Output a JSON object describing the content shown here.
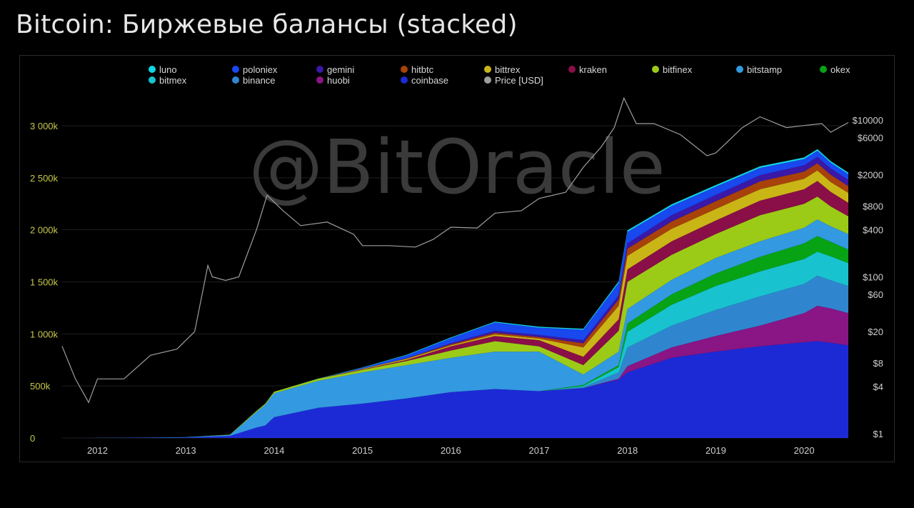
{
  "page": {
    "title": "Bitcoin: Биржевые балансы (stacked)"
  },
  "watermark": "@BitOracle",
  "chart_data": {
    "type": "area",
    "title": "Bitcoin: Биржевые балансы (stacked)",
    "legend_position": "top",
    "grid": true,
    "x_tick_labels": [
      "2012",
      "2013",
      "2014",
      "2015",
      "2016",
      "2017",
      "2018",
      "2019",
      "2020"
    ],
    "x_range": [
      2011.6,
      2020.5
    ],
    "y_left": {
      "range": [
        0,
        3000000
      ],
      "ticks": [
        0,
        500000,
        1000000,
        1500000,
        2000000,
        2500000,
        3000000
      ],
      "tick_labels": [
        "0",
        "500k",
        "1 000k",
        "1 500k",
        "2 000k",
        "2 500k",
        "3 000k"
      ]
    },
    "y_right": {
      "scale": "log",
      "tick_values": [
        1,
        4,
        8,
        20,
        60,
        100,
        400,
        800,
        2000,
        6000,
        10000
      ],
      "tick_labels": [
        "$1",
        "$4",
        "$8",
        "$20",
        "$60",
        "$100",
        "$400",
        "$800",
        "$2000",
        "$6000",
        "$10000"
      ]
    },
    "x": [
      2011.6,
      2012.0,
      2012.5,
      2013.0,
      2013.5,
      2013.8,
      2013.9,
      2014.0,
      2014.5,
      2015.0,
      2015.5,
      2016.0,
      2016.5,
      2017.0,
      2017.5,
      2017.9,
      2018.0,
      2018.5,
      2019.0,
      2019.5,
      2020.0,
      2020.15,
      2020.3,
      2020.5
    ],
    "series": [
      {
        "name": "coinbase",
        "color": "#1c2ad6",
        "values": [
          0,
          1000,
          3000,
          5000,
          20000,
          100000,
          120000,
          200000,
          290000,
          330000,
          380000,
          440000,
          470000,
          450000,
          480000,
          560000,
          630000,
          770000,
          830000,
          880000,
          920000,
          930000,
          915000,
          890000
        ]
      },
      {
        "name": "huobi",
        "color": "#8a1585",
        "values": [
          0,
          0,
          0,
          0,
          0,
          0,
          0,
          0,
          0,
          0,
          0,
          0,
          0,
          0,
          0,
          10000,
          60000,
          100000,
          150000,
          200000,
          280000,
          340000,
          330000,
          310000
        ]
      },
      {
        "name": "binance",
        "color": "#2f86cf",
        "values": [
          0,
          0,
          0,
          0,
          0,
          0,
          0,
          0,
          0,
          0,
          0,
          0,
          0,
          0,
          10000,
          60000,
          180000,
          210000,
          250000,
          280000,
          280000,
          290000,
          270000,
          260000
        ]
      },
      {
        "name": "bitmex",
        "color": "#18c3cf",
        "values": [
          0,
          0,
          0,
          0,
          0,
          0,
          0,
          0,
          0,
          0,
          0,
          0,
          0,
          0,
          10000,
          50000,
          150000,
          200000,
          230000,
          240000,
          240000,
          230000,
          230000,
          220000
        ]
      },
      {
        "name": "okex",
        "color": "#07a315",
        "values": [
          0,
          0,
          0,
          0,
          0,
          0,
          0,
          0,
          0,
          0,
          0,
          0,
          0,
          0,
          10000,
          20000,
          80000,
          100000,
          120000,
          140000,
          150000,
          150000,
          140000,
          130000
        ]
      },
      {
        "name": "bitstamp",
        "color": "#3399e0",
        "values": [
          0,
          500,
          1000,
          3000,
          10000,
          150000,
          200000,
          230000,
          260000,
          300000,
          320000,
          330000,
          360000,
          380000,
          100000,
          130000,
          140000,
          140000,
          150000,
          150000,
          150000,
          160000,
          150000,
          150000
        ]
      },
      {
        "name": "bitfinex",
        "color": "#9ccb17",
        "values": [
          0,
          0,
          0,
          0,
          3000,
          10000,
          10000,
          15000,
          20000,
          25000,
          40000,
          70000,
          100000,
          50000,
          90000,
          200000,
          260000,
          240000,
          230000,
          250000,
          230000,
          220000,
          190000,
          170000
        ]
      },
      {
        "name": "kraken",
        "color": "#8a0e47",
        "values": [
          0,
          0,
          0,
          0,
          0,
          0,
          0,
          0,
          0,
          5000,
          10000,
          40000,
          50000,
          60000,
          80000,
          110000,
          120000,
          130000,
          130000,
          140000,
          140000,
          150000,
          140000,
          130000
        ]
      },
      {
        "name": "bittrex",
        "color": "#c9b616",
        "values": [
          0,
          0,
          0,
          0,
          0,
          0,
          0,
          0,
          0,
          5000,
          10000,
          10000,
          15000,
          15000,
          90000,
          130000,
          130000,
          120000,
          110000,
          110000,
          100000,
          100000,
          95000,
          95000
        ]
      },
      {
        "name": "hitbtc",
        "color": "#a8420a",
        "values": [
          0,
          0,
          0,
          0,
          0,
          0,
          0,
          0,
          0,
          0,
          5000,
          10000,
          15000,
          15000,
          40000,
          60000,
          70000,
          70000,
          75000,
          75000,
          70000,
          70000,
          70000,
          65000
        ]
      },
      {
        "name": "gemini",
        "color": "#3a18a8",
        "values": [
          0,
          0,
          0,
          0,
          0,
          0,
          0,
          0,
          0,
          0,
          0,
          10000,
          20000,
          20000,
          30000,
          40000,
          50000,
          60000,
          60000,
          60000,
          60000,
          60000,
          60000,
          60000
        ]
      },
      {
        "name": "poloniex",
        "color": "#1848ee",
        "values": [
          0,
          0,
          0,
          0,
          0,
          0,
          0,
          0,
          0,
          10000,
          30000,
          50000,
          80000,
          70000,
          100000,
          120000,
          110000,
          90000,
          80000,
          70000,
          60000,
          60000,
          55000,
          55000
        ]
      },
      {
        "name": "luno",
        "color": "#11d6e4",
        "values": [
          0,
          0,
          0,
          0,
          0,
          0,
          0,
          0,
          1000,
          3000,
          5000,
          6000,
          8000,
          9000,
          10000,
          15000,
          15000,
          15000,
          15000,
          15000,
          15000,
          15000,
          15000,
          15000
        ]
      }
    ],
    "price_usd": {
      "name": "Price [USD]",
      "color": "#9e9e9e",
      "x": [
        2011.6,
        2011.75,
        2011.9,
        2012.0,
        2012.3,
        2012.6,
        2012.9,
        2013.1,
        2013.25,
        2013.3,
        2013.45,
        2013.6,
        2013.8,
        2013.92,
        2014.1,
        2014.3,
        2014.6,
        2014.9,
        2015.0,
        2015.3,
        2015.6,
        2015.8,
        2016.0,
        2016.3,
        2016.5,
        2016.8,
        2017.0,
        2017.3,
        2017.5,
        2017.7,
        2017.85,
        2017.96,
        2018.1,
        2018.3,
        2018.6,
        2018.9,
        2019.0,
        2019.3,
        2019.5,
        2019.8,
        2020.0,
        2020.2,
        2020.3,
        2020.5
      ],
      "values": [
        13,
        5,
        2.5,
        5,
        5,
        10,
        12,
        20,
        140,
        100,
        90,
        100,
        400,
        1100,
        700,
        450,
        500,
        350,
        250,
        250,
        240,
        300,
        430,
        420,
        650,
        700,
        1000,
        1200,
        2500,
        4500,
        8000,
        19000,
        9000,
        9000,
        6500,
        3500,
        3800,
        8000,
        11000,
        8000,
        8500,
        9000,
        7000,
        9300
      ]
    },
    "legend": [
      {
        "name": "luno",
        "color": "#11d6e4"
      },
      {
        "name": "poloniex",
        "color": "#1848ee"
      },
      {
        "name": "gemini",
        "color": "#3a18a8"
      },
      {
        "name": "hitbtc",
        "color": "#a8420a"
      },
      {
        "name": "bittrex",
        "color": "#c9b616"
      },
      {
        "name": "kraken",
        "color": "#8a0e47"
      },
      {
        "name": "bitfinex",
        "color": "#9ccb17"
      },
      {
        "name": "bitstamp",
        "color": "#3399e0"
      },
      {
        "name": "okex",
        "color": "#07a315"
      },
      {
        "name": "bitmex",
        "color": "#18c3cf"
      },
      {
        "name": "binance",
        "color": "#2f86cf"
      },
      {
        "name": "huobi",
        "color": "#8a1585"
      },
      {
        "name": "coinbase",
        "color": "#1c2ad6"
      },
      {
        "name": "Price [USD]",
        "color": "#9e9e9e"
      }
    ]
  }
}
